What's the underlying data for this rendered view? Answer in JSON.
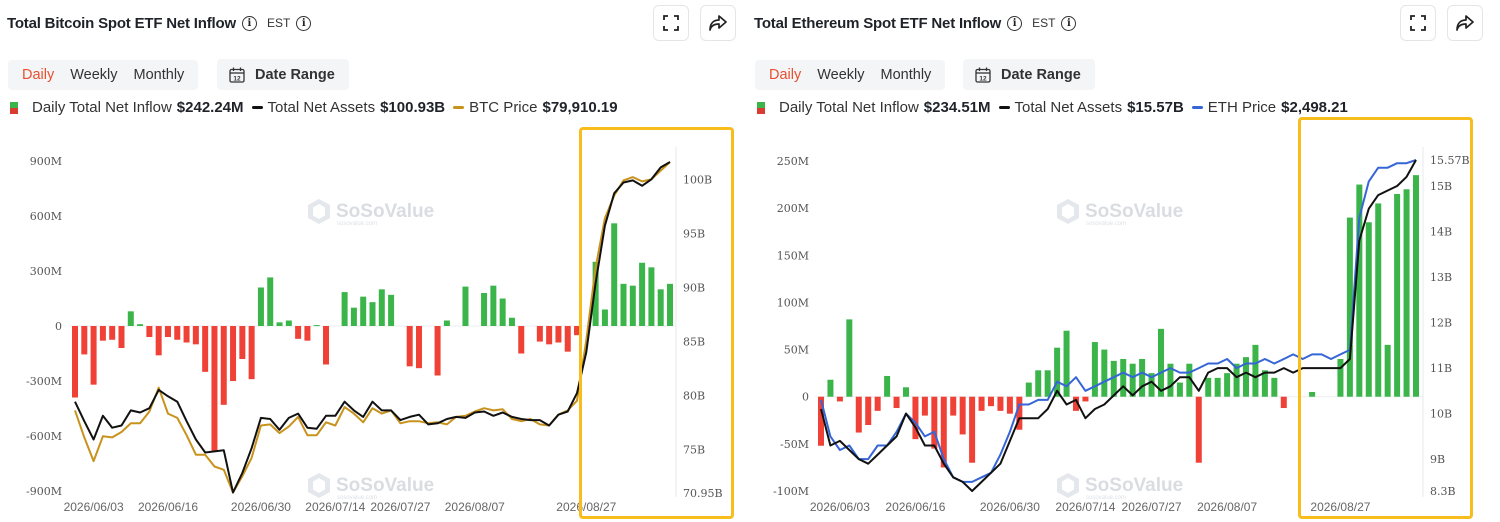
{
  "colors": {
    "inflow": "#3bb54a",
    "outflow": "#ef4136",
    "assets": "#111111",
    "btc": "#c8931c",
    "eth": "#3565d6",
    "highlight": "#f6bd1d",
    "accent": "#e8502f"
  },
  "icons": {
    "info": "info-icon",
    "expand": "expand-icon",
    "share": "share-icon",
    "calendar": "calendar-icon"
  },
  "watermark": {
    "name": "SoSoValue",
    "url": "sosovalue.com"
  },
  "btc_panel": {
    "title": "Total Bitcoin Spot ETF Net Inflow",
    "timezone": "EST",
    "info_glyph": "i",
    "tabs": [
      "Daily",
      "Weekly",
      "Monthly"
    ],
    "active_tab": "Daily",
    "date_range_label": "Date Range",
    "calendar_day": "12",
    "legend": {
      "inflow_label": "Daily Total Net Inflow",
      "inflow_value": "$242.24M",
      "assets_label": "Total Net Assets",
      "assets_value": "$100.93B",
      "price_label": "BTC Price",
      "price_value": "$79,910.19"
    },
    "chart_data": {
      "type": "bar",
      "left_axis": {
        "ticks": [
          "900M",
          "600M",
          "300M",
          "0",
          "-300M",
          "-600M",
          "-900M"
        ],
        "ylim": [
          -900,
          900
        ],
        "unit": "M"
      },
      "right_axis": {
        "ticks": [
          "100B",
          "95B",
          "90B",
          "85B",
          "80B",
          "75B",
          "70.95B"
        ],
        "ylim": [
          70.95,
          101.6
        ],
        "unit": "B"
      },
      "x_ticks": [
        "2026/06/03",
        "2026/06/16",
        "2026/06/30",
        "2026/07/14",
        "2026/07/27",
        "2026/08/07",
        "2026/08/27"
      ],
      "x_tick_index": [
        2,
        10,
        20,
        28,
        35,
        43,
        55
      ],
      "series": [
        {
          "name": "Daily Total Net Inflow",
          "kind": "bar",
          "values": [
            -390,
            -155,
            -320,
            -80,
            -75,
            -120,
            80,
            10,
            -60,
            -160,
            -60,
            -75,
            -90,
            -100,
            -250,
            -680,
            -430,
            -300,
            -180,
            -290,
            210,
            265,
            20,
            30,
            -70,
            -80,
            5,
            -210,
            0,
            185,
            100,
            160,
            130,
            200,
            170,
            0,
            -220,
            -230,
            0,
            -270,
            30,
            0,
            215,
            0,
            180,
            220,
            150,
            45,
            -150,
            0,
            -85,
            -100,
            -90,
            -140,
            -50,
            0,
            350,
            90,
            560,
            230,
            220,
            345,
            320,
            200,
            230
          ]
        },
        {
          "name": "Total Net Assets",
          "kind": "line",
          "values": [
            79.4,
            77.6,
            75.9,
            78.1,
            77.0,
            77.2,
            78.6,
            78.4,
            78.8,
            80.5,
            79.9,
            79.4,
            77.6,
            75.9,
            74.7,
            74.8,
            74.9,
            71.0,
            72.8,
            75.1,
            77.9,
            77.8,
            76.8,
            77.9,
            78.3,
            77.0,
            76.9,
            78.1,
            78.1,
            79.4,
            78.6,
            78.0,
            79.4,
            78.6,
            78.6,
            77.7,
            78.0,
            78.2,
            77.3,
            77.4,
            77.8,
            78.0,
            77.9,
            78.4,
            78.5,
            78.1,
            78.4,
            78.0,
            77.8,
            77.7,
            77.7,
            77.2,
            78.2,
            78.5,
            80.2,
            84.0,
            90.4,
            95.7,
            98.7,
            99.7,
            99.9,
            99.4,
            100.0,
            101.1,
            101.6
          ]
        },
        {
          "name": "BTC Price",
          "kind": "line",
          "values": [
            78.6,
            76.1,
            73.9,
            76.2,
            76.1,
            76.6,
            77.4,
            77.4,
            78.5,
            80.7,
            78.3,
            77.9,
            76.3,
            74.5,
            74.5,
            73.4,
            73.1,
            71.0,
            72.5,
            74.2,
            77.2,
            77.3,
            76.5,
            77.1,
            78.0,
            76.3,
            76.3,
            77.5,
            77.2,
            78.9,
            78.3,
            77.5,
            78.8,
            78.3,
            78.6,
            77.4,
            77.6,
            77.6,
            77.4,
            77.5,
            77.3,
            78.0,
            78.1,
            78.5,
            78.8,
            78.6,
            78.7,
            77.8,
            77.6,
            77.8,
            77.3,
            77.2,
            78.2,
            78.6,
            79.5,
            85.1,
            91.8,
            96.4,
            98.5,
            99.9,
            100.2,
            99.8,
            100.0,
            100.8,
            101.6
          ]
        }
      ]
    }
  },
  "eth_panel": {
    "title": "Total Ethereum Spot ETF Net Inflow",
    "timezone": "EST",
    "info_glyph": "i",
    "tabs": [
      "Daily",
      "Weekly",
      "Monthly"
    ],
    "active_tab": "Daily",
    "date_range_label": "Date Range",
    "calendar_day": "12",
    "legend": {
      "inflow_label": "Daily Total Net Inflow",
      "inflow_value": "$234.51M",
      "assets_label": "Total Net Assets",
      "assets_value": "$15.57B",
      "price_label": "ETH Price",
      "price_value": "$2,498.21"
    },
    "chart_data": {
      "type": "bar",
      "left_axis": {
        "ticks": [
          "250M",
          "200M",
          "150M",
          "100M",
          "50M",
          "0",
          "-50M",
          "-100M"
        ],
        "ylim": [
          -100,
          250
        ],
        "unit": "M"
      },
      "right_axis": {
        "ticks": [
          "15.57B",
          "15B",
          "14B",
          "13B",
          "12B",
          "11B",
          "10B",
          "9B",
          "8.3B"
        ],
        "ylim": [
          8.3,
          15.57
        ],
        "unit": "B"
      },
      "x_ticks": [
        "2026/06/03",
        "2026/06/16",
        "2026/06/30",
        "2026/07/14",
        "2026/07/27",
        "2026/08/07",
        "2026/08/27"
      ],
      "x_tick_index": [
        2,
        10,
        20,
        28,
        35,
        43,
        55
      ],
      "series": [
        {
          "name": "Daily Total Net Inflow",
          "kind": "bar",
          "values": [
            -52,
            18,
            -5,
            82,
            -38,
            -30,
            -15,
            22,
            -12,
            10,
            -45,
            -20,
            -55,
            -75,
            -20,
            -40,
            -70,
            -15,
            -10,
            -15,
            -18,
            -35,
            15,
            28,
            28,
            52,
            70,
            -15,
            -5,
            58,
            50,
            38,
            40,
            35,
            40,
            25,
            72,
            35,
            15,
            35,
            -70,
            20,
            20,
            25,
            35,
            42,
            55,
            28,
            20,
            -12,
            0,
            0,
            5,
            0,
            0,
            40,
            190,
            225,
            185,
            205,
            55,
            215,
            220,
            235
          ]
        },
        {
          "name": "Total Net Assets",
          "kind": "line",
          "values": [
            10.1,
            9.3,
            9.4,
            9.2,
            9.0,
            8.9,
            9.1,
            9.3,
            9.5,
            10.0,
            9.7,
            9.3,
            9.3,
            8.9,
            8.6,
            8.5,
            8.3,
            8.5,
            8.7,
            8.9,
            9.4,
            9.9,
            9.9,
            9.9,
            10.1,
            10.5,
            10.2,
            10.3,
            9.9,
            10.1,
            10.2,
            10.4,
            10.6,
            10.4,
            10.6,
            10.7,
            10.5,
            10.6,
            10.8,
            10.8,
            10.5,
            10.9,
            11.0,
            11.0,
            10.8,
            10.9,
            10.8,
            10.9,
            10.9,
            11.0,
            10.9,
            11.0,
            11.0,
            11.0,
            11.0,
            11.0,
            11.2,
            13.8,
            14.5,
            14.8,
            14.9,
            15.0,
            15.2,
            15.57
          ]
        },
        {
          "name": "ETH Price",
          "kind": "line",
          "values": [
            10.3,
            9.5,
            9.2,
            9.3,
            9.0,
            9.0,
            9.3,
            9.3,
            9.6,
            10.0,
            9.8,
            9.5,
            9.6,
            9.0,
            8.6,
            8.5,
            8.5,
            8.6,
            8.7,
            9.1,
            9.6,
            10.2,
            10.2,
            10.3,
            10.3,
            10.7,
            10.6,
            10.8,
            10.5,
            10.6,
            10.7,
            10.8,
            10.9,
            10.8,
            10.9,
            10.8,
            10.9,
            11.0,
            10.9,
            10.9,
            11.0,
            11.1,
            11.1,
            11.2,
            11.0,
            11.1,
            11.1,
            11.2,
            11.1,
            11.2,
            11.3,
            11.2,
            11.3,
            11.3,
            11.2,
            11.3,
            11.4,
            14.3,
            15.1,
            15.4,
            15.4,
            15.5,
            15.5,
            15.57
          ]
        }
      ]
    }
  }
}
